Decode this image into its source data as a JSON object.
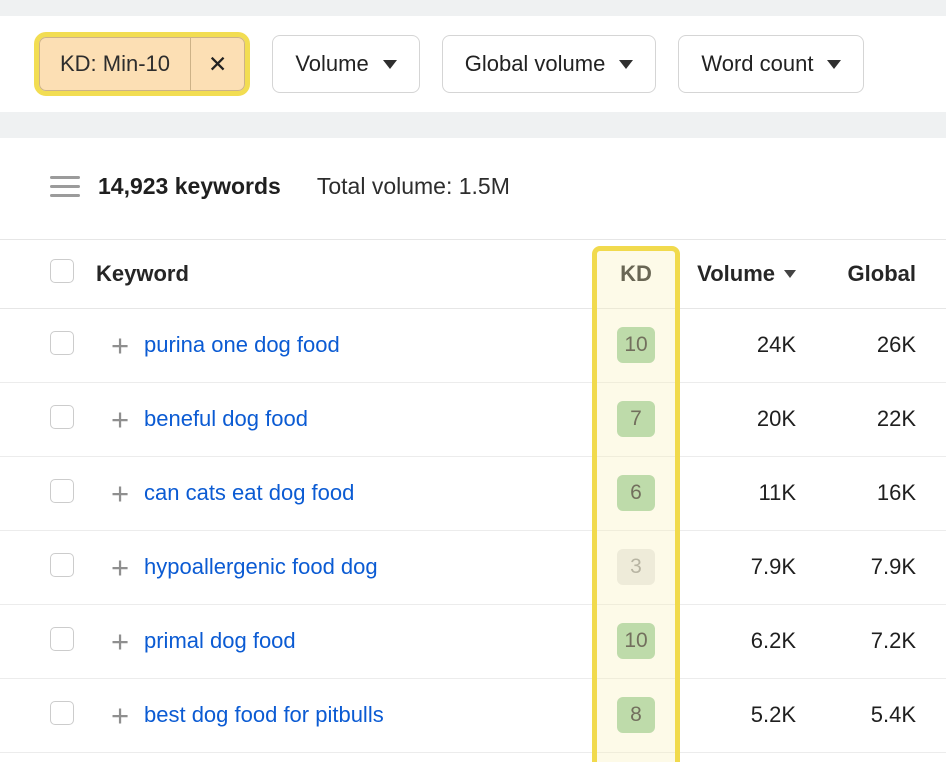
{
  "filters": {
    "chip": {
      "label": "KD: Min-10",
      "close_icon": "✕"
    },
    "dropdowns": [
      {
        "label": "Volume",
        "icon": "caret-down"
      },
      {
        "label": "Global volume",
        "icon": "caret-down"
      },
      {
        "label": "Word count",
        "icon": "caret-down"
      }
    ]
  },
  "summary": {
    "keywords_count": "14,923 keywords",
    "total_volume": "Total volume: 1.5M"
  },
  "table": {
    "headers": {
      "keyword": "Keyword",
      "kd": "KD",
      "volume": "Volume",
      "global": "Global"
    },
    "rows": [
      {
        "keyword": "purina one dog food",
        "kd": "10",
        "kd_level": "green",
        "volume": "24K",
        "global": "26K"
      },
      {
        "keyword": "beneful dog food",
        "kd": "7",
        "kd_level": "green",
        "volume": "20K",
        "global": "22K"
      },
      {
        "keyword": "can cats eat dog food",
        "kd": "6",
        "kd_level": "green",
        "volume": "11K",
        "global": "16K"
      },
      {
        "keyword": "hypoallergenic food dog",
        "kd": "3",
        "kd_level": "gray",
        "volume": "7.9K",
        "global": "7.9K"
      },
      {
        "keyword": "primal dog food",
        "kd": "10",
        "kd_level": "green",
        "volume": "6.2K",
        "global": "7.2K"
      },
      {
        "keyword": "best dog food for pitbulls",
        "kd": "8",
        "kd_level": "green",
        "volume": "5.2K",
        "global": "5.4K"
      }
    ]
  },
  "colors": {
    "highlight_yellow": "#f1da4d",
    "chip_background": "#fcdfb4",
    "link_blue": "#0b5bd3",
    "kd_green": "#a3d1a4",
    "kd_gray": "#e9e9e9"
  }
}
